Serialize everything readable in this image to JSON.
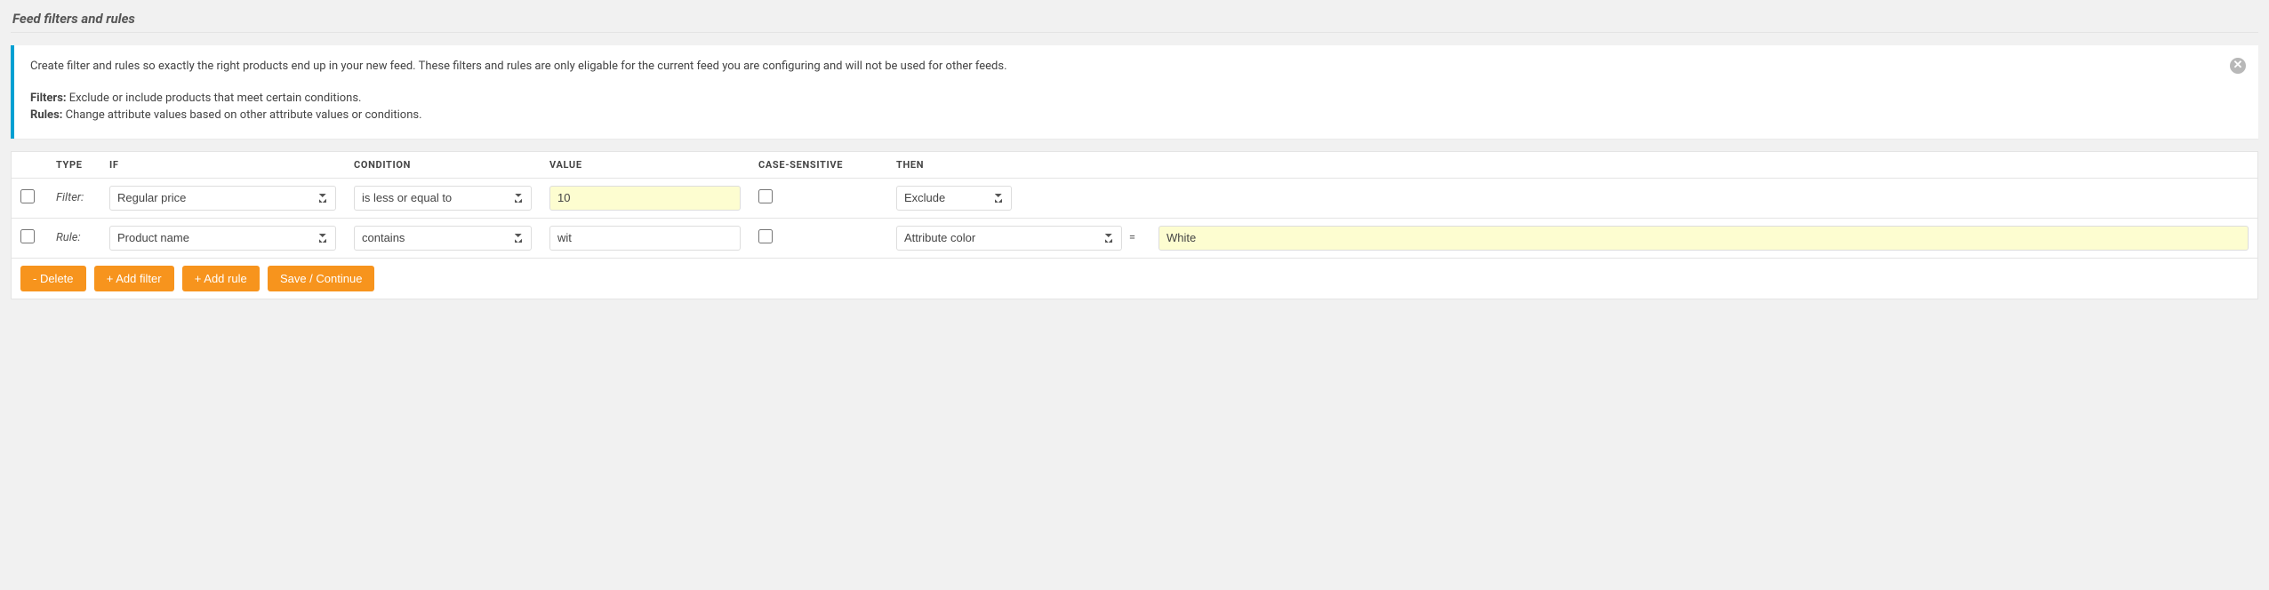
{
  "section_title": "Feed filters and rules",
  "notice": {
    "lead": "Create filter and rules so exactly the right products end up in your new feed. These filters and rules are only eligable for the current feed you are configuring and will not be used for other feeds.",
    "filters_label": "Filters:",
    "filters_text": " Exclude or include products that meet certain conditions.",
    "rules_label": "Rules:",
    "rules_text": " Change attribute values based on other attribute values or conditions.",
    "close_glyph": "✕"
  },
  "headers": {
    "type": "Type",
    "if": "If",
    "condition": "Condition",
    "value": "Value",
    "case": "Case-sensitive",
    "then": "Then"
  },
  "rows": [
    {
      "type_label": "Filter:",
      "if_value": "Regular price",
      "condition_value": "is less or equal to",
      "value_value": "10",
      "value_highlight": true,
      "case_sensitive": false,
      "then_value": "Exclude",
      "then_narrow": true,
      "has_equals": false
    },
    {
      "type_label": "Rule:",
      "if_value": "Product name",
      "condition_value": "contains",
      "value_value": "wit",
      "value_highlight": false,
      "case_sensitive": false,
      "then_value": "Attribute color",
      "then_narrow": false,
      "has_equals": true,
      "result_value": "White",
      "result_highlight": true
    }
  ],
  "buttons": {
    "delete": "- Delete",
    "add_filter": "+ Add filter",
    "add_rule": "+ Add rule",
    "save": "Save / Continue"
  },
  "colors": {
    "accent": "#00a0d2",
    "button": "#f7941d",
    "highlight": "#fdfdd0"
  }
}
